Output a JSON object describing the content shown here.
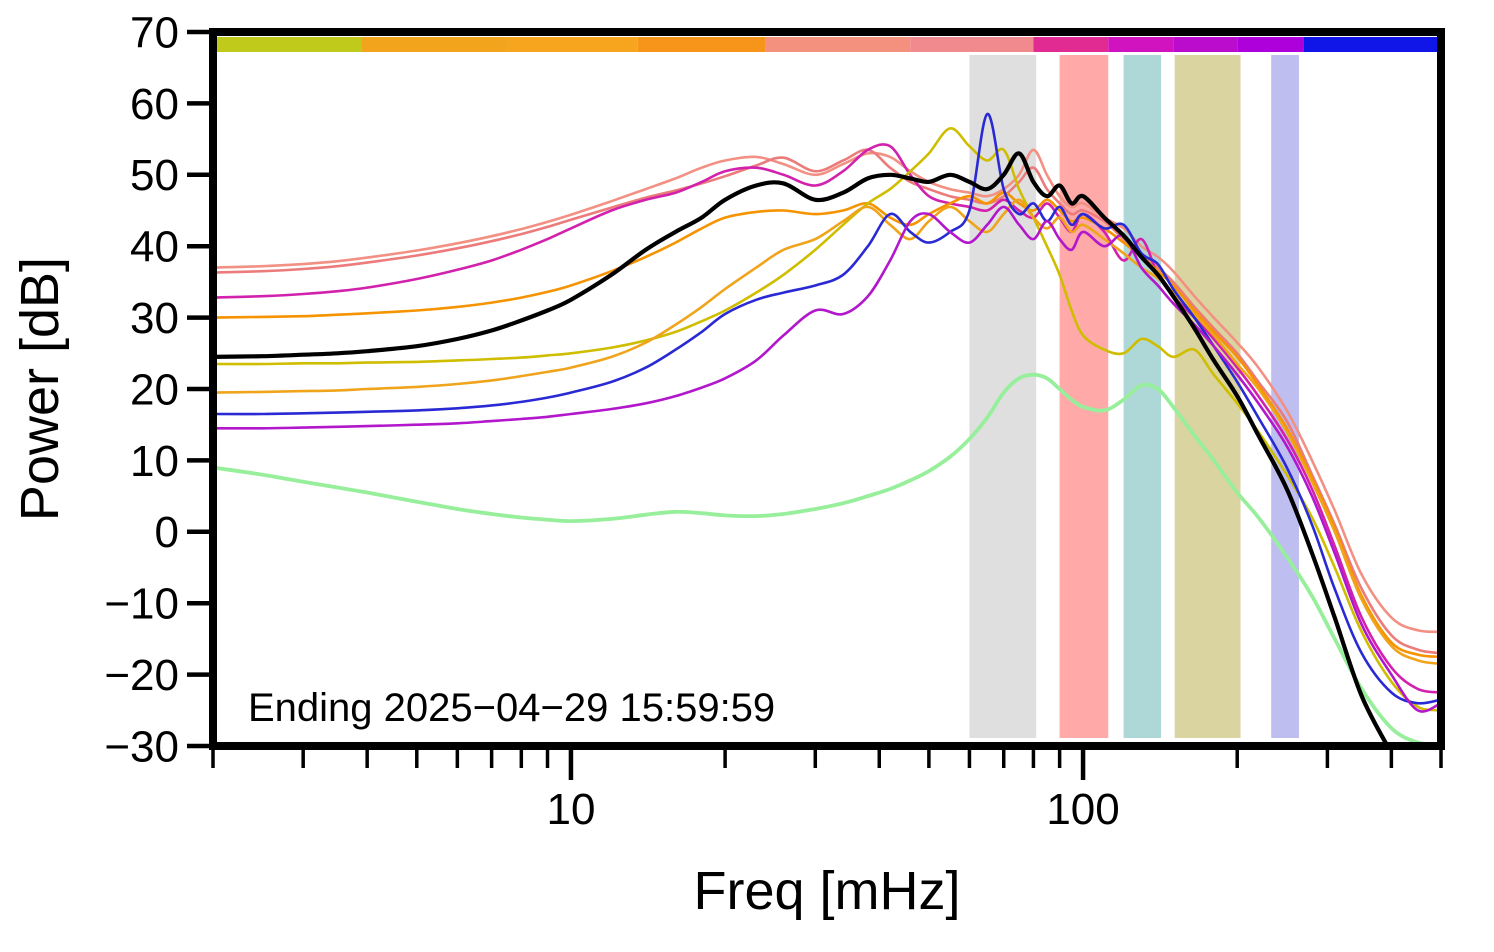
{
  "figure": {
    "background": "#ffffff"
  },
  "chart_data": {
    "type": "line",
    "title": "",
    "xlabel": "Freq [mHz]",
    "ylabel": "Power [dB]",
    "annotation": "Ending 2025−04−29 15:59:59",
    "xscale": "log",
    "xlim": [
      2,
      500
    ],
    "ylim": [
      -30,
      70
    ],
    "grid": false,
    "legend": "none",
    "xticks_major": [
      10,
      100
    ],
    "xtick_labels": [
      "10",
      "100"
    ],
    "xticks_minor": [
      2,
      3,
      4,
      5,
      6,
      7,
      8,
      9,
      20,
      30,
      40,
      50,
      60,
      70,
      80,
      90,
      200,
      300,
      400,
      500
    ],
    "yticks": [
      70,
      60,
      50,
      40,
      30,
      20,
      10,
      0,
      -10,
      -20,
      -30
    ],
    "ytick_labels": [
      "70",
      "60",
      "50",
      "40",
      "30",
      "20",
      "10",
      "0",
      "−10",
      "−20",
      "−30"
    ],
    "top_colorbar": [
      {
        "x0": 2,
        "x1": 3.9,
        "color": "#bfca1b"
      },
      {
        "x0": 3.9,
        "x1": 7.5,
        "color": "#f2a51c"
      },
      {
        "x0": 7.5,
        "x1": 13.5,
        "color": "#f7a41e"
      },
      {
        "x0": 13.5,
        "x1": 24,
        "color": "#f7941a"
      },
      {
        "x0": 24,
        "x1": 46,
        "color": "#f4917e"
      },
      {
        "x0": 46,
        "x1": 80,
        "color": "#f18a8e"
      },
      {
        "x0": 80,
        "x1": 112,
        "color": "#e22a93"
      },
      {
        "x0": 112,
        "x1": 150,
        "color": "#d013be"
      },
      {
        "x0": 150,
        "x1": 200,
        "color": "#bb0ccd"
      },
      {
        "x0": 200,
        "x1": 270,
        "color": "#ad00da"
      },
      {
        "x0": 270,
        "x1": 500,
        "color": "#1016e8"
      }
    ],
    "vbands": [
      {
        "x0": 60,
        "x1": 81,
        "color": "#d9d9d9",
        "opacity": 0.85
      },
      {
        "x0": 90,
        "x1": 112,
        "color": "#ffa0a0",
        "opacity": 0.9
      },
      {
        "x0": 120,
        "x1": 142,
        "color": "#a5d3d3",
        "opacity": 0.9
      },
      {
        "x0": 151,
        "x1": 203,
        "color": "#d6cf97",
        "opacity": 0.9
      },
      {
        "x0": 233,
        "x1": 264,
        "color": "#b7b7ee",
        "opacity": 0.9
      }
    ],
    "x": [
      2,
      2.5,
      3,
      3.5,
      4,
      5,
      6,
      7,
      8,
      9,
      10,
      12,
      14,
      16,
      18,
      20,
      23,
      26,
      30,
      34,
      38,
      42,
      46,
      50,
      55,
      60,
      65,
      70,
      75,
      80,
      85,
      90,
      95,
      100,
      110,
      120,
      130,
      140,
      150,
      165,
      180,
      200,
      220,
      250,
      280,
      310,
      350,
      400,
      450,
      500
    ],
    "series": [
      {
        "name": "salmon-light",
        "color": "#f29084",
        "width": 2.6,
        "values": [
          37,
          37.2,
          37.5,
          37.9,
          38.4,
          39.4,
          40.4,
          41.4,
          42.4,
          43.4,
          44.4,
          46.3,
          48,
          49.5,
          51,
          52,
          52.5,
          51.5,
          50,
          51.5,
          53,
          52.5,
          50.5,
          49,
          48,
          47.5,
          47,
          48,
          50,
          53.5,
          50,
          47,
          45.5,
          46,
          44,
          42.5,
          40,
          38.5,
          36.5,
          33,
          30,
          26.5,
          23,
          17,
          10,
          3,
          -6,
          -12,
          -13.8,
          -14
        ]
      },
      {
        "name": "salmon",
        "color": "#ec7b7b",
        "width": 2.6,
        "values": [
          36.3,
          36.5,
          36.8,
          37.2,
          37.7,
          38.7,
          39.7,
          40.7,
          41.7,
          42.7,
          43.7,
          45.4,
          46.8,
          47.8,
          48.8,
          49.8,
          51.3,
          52.4,
          50.5,
          52,
          53.5,
          51,
          49,
          48,
          47,
          46.5,
          46,
          47,
          49,
          51,
          48,
          46,
          44.5,
          45,
          43.5,
          41,
          39,
          37,
          35,
          31.5,
          28.5,
          25,
          21,
          15.5,
          8,
          1,
          -8,
          -14.5,
          -16.5,
          -17
        ]
      },
      {
        "name": "magenta",
        "color": "#d121ad",
        "width": 2.6,
        "values": [
          32.8,
          33,
          33.3,
          33.7,
          34.2,
          35.4,
          36.7,
          38,
          39.5,
          41,
          42.5,
          45,
          46.5,
          47.5,
          49,
          50.5,
          51,
          50,
          48.5,
          50.5,
          53.5,
          54,
          50,
          47,
          46,
          45.5,
          45,
          46.5,
          45,
          44,
          46,
          44,
          42,
          44.5,
          42,
          38,
          41,
          36,
          33,
          30,
          27,
          23,
          19,
          13,
          6,
          -2,
          -12,
          -19,
          -22,
          -22.5
        ]
      },
      {
        "name": "orange",
        "color": "#f59300",
        "width": 2.6,
        "values": [
          30,
          30.1,
          30.2,
          30.4,
          30.6,
          31,
          31.5,
          32.1,
          32.8,
          33.6,
          34.5,
          36.5,
          38.5,
          40.5,
          42.5,
          44,
          44.8,
          45,
          44.5,
          45,
          46,
          44,
          43,
          44.5,
          46,
          47,
          46,
          47.5,
          46,
          45,
          46.5,
          45,
          43.5,
          44,
          42.5,
          40.5,
          38.5,
          36.5,
          34.5,
          31,
          28,
          24.5,
          20.5,
          14.5,
          7.5,
          0.5,
          -9,
          -15.5,
          -17.2,
          -17.5
        ]
      },
      {
        "name": "gold",
        "color": "#cfbd00",
        "width": 2.6,
        "values": [
          23.5,
          23.5,
          23.6,
          23.6,
          23.7,
          23.8,
          24,
          24.2,
          24.4,
          24.7,
          25,
          25.8,
          26.8,
          28,
          29.5,
          31,
          33.5,
          36,
          39.5,
          43,
          46,
          48,
          50.5,
          53,
          56.5,
          54,
          52,
          53.5,
          48,
          44,
          40,
          36,
          31,
          27.5,
          25.5,
          25,
          27,
          26,
          24.5,
          25.5,
          22,
          18,
          14,
          8,
          2,
          -5,
          -14,
          -21,
          -24.5,
          -25
        ]
      },
      {
        "name": "orange-dark",
        "color": "#efa41c",
        "width": 2.6,
        "values": [
          19.5,
          19.6,
          19.7,
          19.8,
          20,
          20.3,
          20.7,
          21.2,
          21.8,
          22.4,
          23,
          24.5,
          26.5,
          29,
          31.5,
          34,
          37,
          39.5,
          41,
          43.5,
          45.5,
          43,
          41,
          43.5,
          45.5,
          43.5,
          42,
          44.5,
          46.5,
          44,
          42.5,
          44,
          42,
          43,
          41,
          39,
          37,
          35.5,
          33.5,
          30.5,
          27.5,
          23.5,
          20,
          14,
          7,
          0,
          -9.5,
          -16,
          -18,
          -18.5
        ]
      },
      {
        "name": "blue",
        "color": "#2a2ad4",
        "width": 2.6,
        "values": [
          16.5,
          16.5,
          16.6,
          16.7,
          16.8,
          17,
          17.3,
          17.7,
          18.2,
          18.8,
          19.5,
          21,
          23,
          25.5,
          28,
          30.5,
          32.5,
          33.5,
          34.5,
          36,
          40,
          44.5,
          42,
          40.5,
          42,
          45,
          58.5,
          48,
          44.5,
          46,
          43.5,
          45.5,
          43,
          44.5,
          42.5,
          43,
          39,
          37.5,
          34,
          30,
          26,
          21,
          16,
          9,
          1,
          -8,
          -17,
          -22.5,
          -24,
          -23.5
        ]
      },
      {
        "name": "violet",
        "color": "#b217cc",
        "width": 2.6,
        "values": [
          14.5,
          14.5,
          14.6,
          14.7,
          14.8,
          15,
          15.2,
          15.5,
          15.8,
          16.1,
          16.5,
          17.2,
          18,
          19,
          20.2,
          21.5,
          24,
          27.5,
          31,
          30.5,
          33,
          38,
          43.5,
          44.5,
          42,
          40.5,
          43,
          45.5,
          43,
          41,
          43.5,
          41,
          39.5,
          42,
          40,
          41.5,
          37,
          34.5,
          32,
          29,
          26,
          22,
          18,
          12,
          5,
          -3,
          -13,
          -20,
          -25,
          -24
        ]
      },
      {
        "name": "green",
        "color": "#97ef9b",
        "width": 3.8,
        "values": [
          9,
          8,
          7,
          6.2,
          5.5,
          4.2,
          3.2,
          2.5,
          2,
          1.7,
          1.5,
          1.8,
          2.4,
          2.8,
          2.6,
          2.3,
          2.2,
          2.5,
          3.2,
          4,
          5,
          6,
          7.2,
          8.5,
          10.5,
          13,
          16,
          19.5,
          21.5,
          22,
          21.5,
          20,
          18.5,
          17.5,
          17,
          18.5,
          20.5,
          20,
          17.5,
          13.5,
          10,
          5.5,
          2,
          -3.5,
          -9,
          -15,
          -22,
          -27.5,
          -29.5,
          -29.8
        ]
      },
      {
        "name": "black",
        "color": "#000000",
        "width": 4.2,
        "values": [
          24.5,
          24.6,
          24.8,
          25,
          25.3,
          26,
          27,
          28.2,
          29.6,
          31,
          32.5,
          36,
          39.5,
          42,
          44,
          46.5,
          48.5,
          48.8,
          46.5,
          47.5,
          49.5,
          50,
          49.5,
          49,
          50,
          49,
          48,
          50,
          53,
          49,
          47,
          48.5,
          46,
          47,
          44,
          41.5,
          38.5,
          36,
          33,
          28.5,
          24,
          19,
          13.5,
          6,
          -3,
          -12,
          -23,
          -31,
          null,
          null
        ]
      }
    ]
  }
}
